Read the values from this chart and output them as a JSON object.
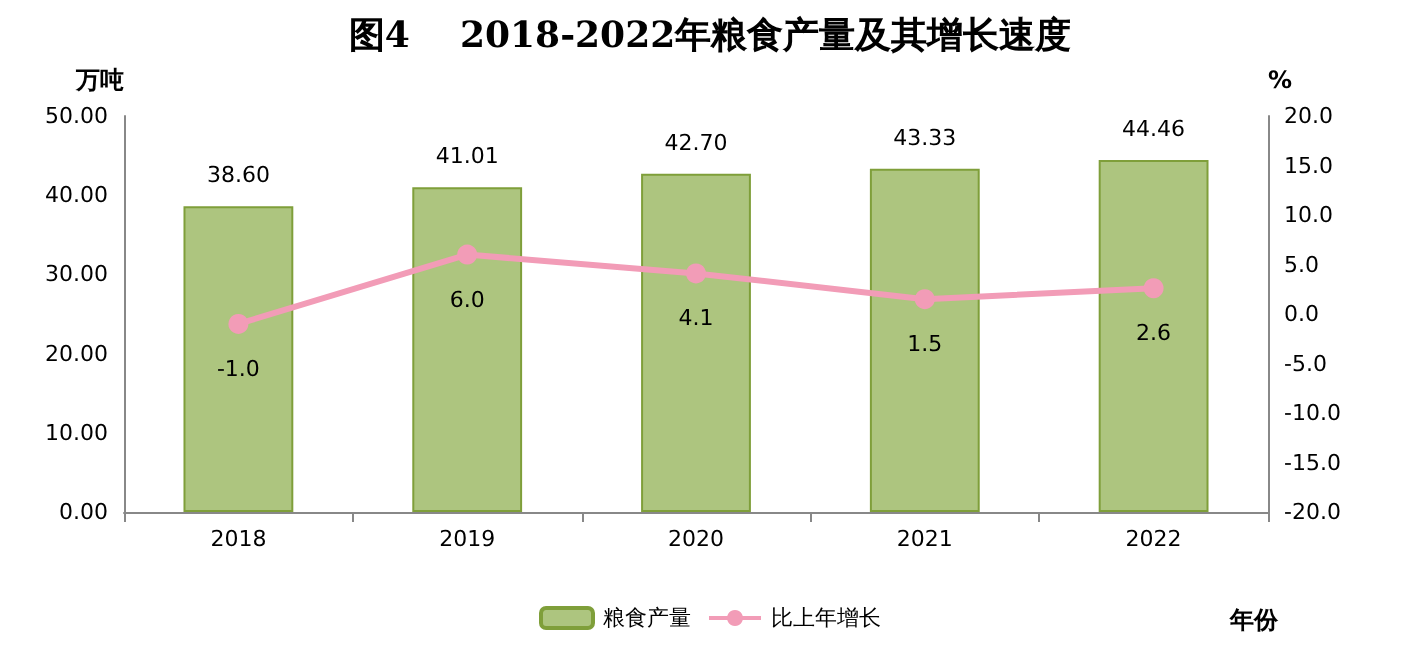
{
  "chart_data": {
    "type": "bar",
    "title": "图4    2018-2022年粮食产量及其增长速度",
    "xlabel": "年份",
    "ylabel": "万吨",
    "y2label": "%",
    "categories": [
      "2018",
      "2019",
      "2020",
      "2021",
      "2022"
    ],
    "series": [
      {
        "name": "粮食产量",
        "color": "#adc57f",
        "values": [
          38.6,
          41.01,
          42.7,
          43.33,
          44.46
        ],
        "value_labels": [
          "38.60",
          "41.01",
          "42.70",
          "43.33",
          "44.46"
        ]
      },
      {
        "name": "比上年增长",
        "type": "line",
        "axis": "y2",
        "color": "#f29cb7",
        "marker": "circle",
        "values": [
          -1.0,
          6.0,
          4.1,
          1.5,
          2.6
        ],
        "value_labels": [
          "-1.0",
          "6.0",
          "4.1",
          "1.5",
          "2.6"
        ]
      }
    ],
    "ylim": [
      0,
      50
    ],
    "yticks": [
      {
        "value": 0,
        "label": "0.00"
      },
      {
        "value": 10,
        "label": "10.00"
      },
      {
        "value": 20,
        "label": "20.00"
      },
      {
        "value": 30,
        "label": "30.00"
      },
      {
        "value": 40,
        "label": "40.00"
      },
      {
        "value": 50,
        "label": "50.00"
      }
    ],
    "y2lim": [
      -20,
      20
    ],
    "y2ticks": [
      {
        "value": -20,
        "label": "-20.0"
      },
      {
        "value": -15,
        "label": "-15.0"
      },
      {
        "value": -10,
        "label": "-10.0"
      },
      {
        "value": -5,
        "label": "-5.0"
      },
      {
        "value": 0,
        "label": "0.0"
      },
      {
        "value": 5,
        "label": "5.0"
      },
      {
        "value": 10,
        "label": "10.0"
      },
      {
        "value": 15,
        "label": "15.0"
      },
      {
        "value": 20,
        "label": "20.0"
      }
    ],
    "grid": false,
    "legend": "bottom"
  }
}
